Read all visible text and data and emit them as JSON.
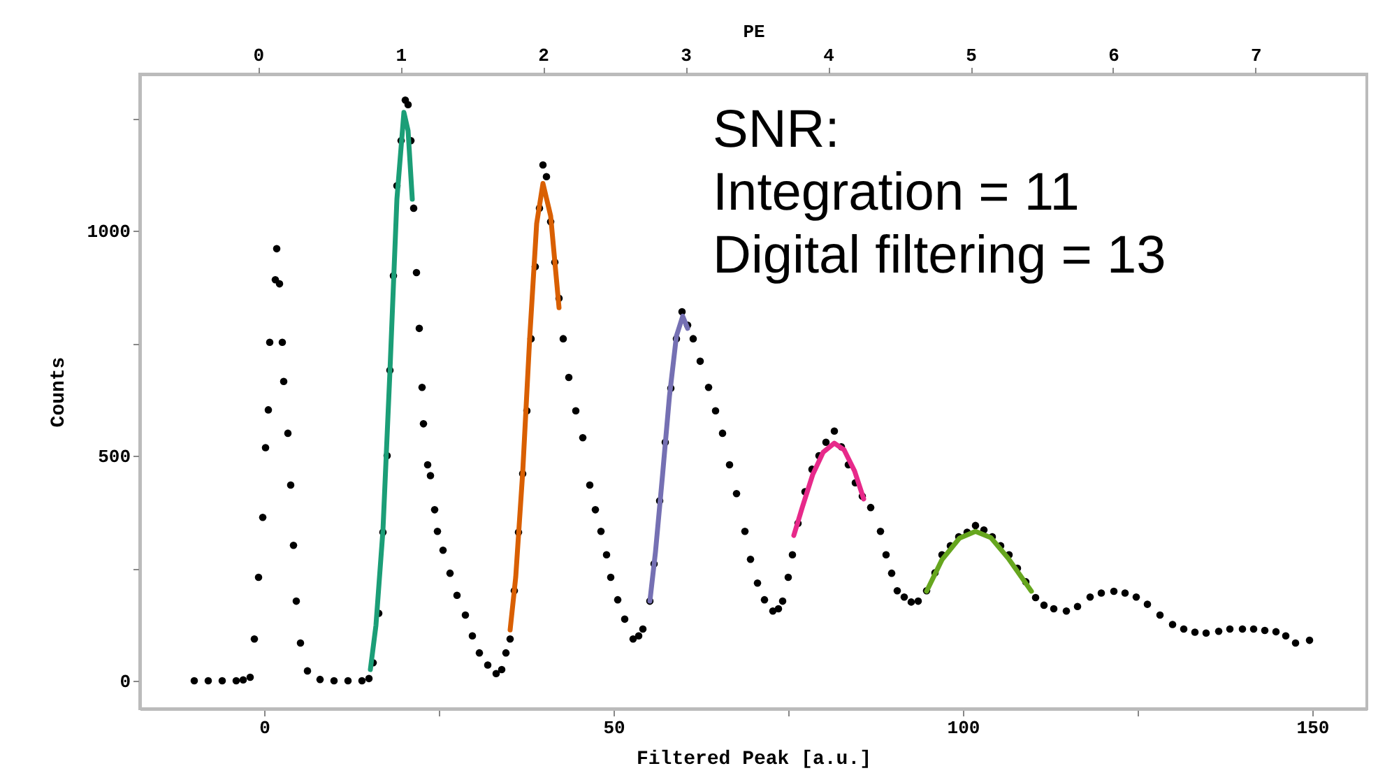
{
  "chart_data": {
    "type": "scatter",
    "xlabel": "Filtered Peak [a.u.]",
    "ylabel": "Counts",
    "x2label": "PE",
    "annotations": [
      "SNR:\nIntegration = 11\nDigital filtering = 13"
    ],
    "xlim": [
      -17.8,
      157.8
    ],
    "xticks": [
      0,
      {
        "value": 25,
        "label": null
      },
      50,
      {
        "value": 75,
        "label": null
      },
      100,
      {
        "value": 125,
        "label": null
      },
      150
    ],
    "ylim": [
      -62,
      1348
    ],
    "yticks": [
      0,
      {
        "value": 250,
        "label": null
      },
      500,
      {
        "value": 750,
        "label": null
      },
      1000,
      {
        "value": 1250,
        "label": null
      }
    ],
    "x2lim": [
      -0.83,
      7.78
    ],
    "x2ticks": [
      0,
      1,
      2,
      3,
      4,
      5,
      6,
      7
    ],
    "grid": false,
    "series": [
      {
        "marker": "circle",
        "color": "#000000",
        "x": [
          -10,
          -8,
          -6,
          -4,
          -3,
          -2,
          -1.4,
          -0.8,
          -0.2,
          0.2,
          0.6,
          0.8,
          1.6,
          1.8,
          2.2,
          2.6,
          2.8,
          3.4,
          3.8,
          4.2,
          4.6,
          5.2,
          6.2,
          8,
          10,
          12,
          14,
          15,
          15.6,
          16.4,
          17,
          17.6,
          18,
          18.5,
          19,
          19.6,
          20.2,
          20.6,
          21,
          21.4,
          21.8,
          22.2,
          22.6,
          22.8,
          23.4,
          23.8,
          24.4,
          24.8,
          25.6,
          26.6,
          27.6,
          28.8,
          29.8,
          30.8,
          32,
          33.2,
          34,
          34.6,
          35.2,
          35.8,
          36.4,
          37,
          37.6,
          38.2,
          38.8,
          39.4,
          39.9,
          40.4,
          41,
          41.6,
          42.2,
          42.8,
          43.6,
          44.6,
          45.6,
          46.6,
          47.4,
          48.2,
          49,
          49.6,
          50.6,
          51.6,
          52.8,
          53.6,
          54.2,
          55.2,
          55.8,
          56.6,
          57.4,
          58.2,
          59,
          59.8,
          60.6,
          61.4,
          62.4,
          63.6,
          64.6,
          65.6,
          66.6,
          67.6,
          68.8,
          69.6,
          70.6,
          71.6,
          72.8,
          73.6,
          74.2,
          75,
          75.6,
          76.4,
          77.4,
          78.4,
          79.4,
          80.4,
          81.6,
          82.6,
          83.6,
          84.6,
          85.6,
          86.8,
          88.2,
          89,
          89.8,
          90.6,
          91.6,
          92.6,
          93.6,
          94.8,
          96,
          97,
          98.2,
          99.4,
          100.6,
          101.8,
          103,
          104.2,
          105.4,
          106.6,
          107.8,
          109,
          110.4,
          111.6,
          113,
          114.8,
          116.4,
          118.2,
          119.8,
          121.6,
          123.2,
          124.8,
          126.4,
          128.2,
          130,
          131.6,
          133.2,
          134.8,
          136.6,
          138.2,
          140,
          141.6,
          143.2,
          144.8,
          146.2,
          147.6,
          149.6
        ],
        "values": [
          0,
          0,
          0,
          0,
          2,
          8,
          93,
          230,
          363,
          518,
          602,
          752,
          891,
          960,
          882,
          752,
          665,
          550,
          435,
          301,
          177,
          84,
          22,
          3,
          0,
          0,
          0,
          5,
          40,
          150,
          330,
          500,
          690,
          900,
          1100,
          1200,
          1290,
          1280,
          1200,
          1050,
          907,
          783,
          652,
          571,
          480,
          456,
          380,
          332,
          290,
          239,
          190,
          146,
          100,
          62,
          35,
          16,
          25,
          62,
          93,
          200,
          330,
          460,
          600,
          760,
          920,
          1050,
          1146,
          1120,
          1020,
          930,
          850,
          760,
          674,
          600,
          540,
          435,
          380,
          332,
          280,
          230,
          180,
          137,
          93,
          100,
          115,
          177,
          260,
          400,
          530,
          650,
          760,
          820,
          790,
          760,
          710,
          652,
          600,
          550,
          480,
          416,
          332,
          270,
          217,
          180,
          155,
          160,
          177,
          230,
          280,
          350,
          420,
          470,
          500,
          530,
          555,
          520,
          480,
          440,
          410,
          385,
          332,
          280,
          239,
          200,
          186,
          175,
          177,
          200,
          240,
          280,
          300,
          320,
          330,
          345,
          335,
          320,
          300,
          280,
          250,
          220,
          185,
          168,
          160,
          155,
          165,
          186,
          195,
          199,
          195,
          186,
          170,
          146,
          125,
          115,
          108,
          106,
          110,
          115,
          115,
          115,
          112,
          109,
          100,
          84,
          90
        ]
      },
      {
        "type": "line",
        "color": "#1b9e77",
        "x": [
          15.2,
          16,
          17,
          18,
          19,
          20,
          20.6,
          21.2
        ],
        "values": [
          25,
          123,
          334,
          687,
          1070,
          1263,
          1222,
          1070
        ]
      },
      {
        "type": "line",
        "color": "#d95f02",
        "x": [
          35.2,
          36,
          37,
          38,
          39,
          39.9,
          41,
          42.2
        ],
        "values": [
          113,
          230,
          463,
          761,
          1016,
          1105,
          1033,
          829
        ]
      },
      {
        "type": "line",
        "color": "#7570b3",
        "x": [
          55.2,
          56,
          57,
          58,
          59,
          59.9,
          60.6
        ],
        "values": [
          177,
          286,
          455,
          632,
          766,
          810,
          783
        ]
      },
      {
        "type": "line",
        "color": "#e7298a",
        "x": [
          75.8,
          77,
          78.5,
          80,
          81.6,
          83,
          84.5,
          85.8
        ],
        "values": [
          323,
          385,
          458,
          508,
          528,
          513,
          466,
          404
        ]
      },
      {
        "type": "line",
        "color": "#66a61e",
        "x": [
          94.8,
          97,
          99.5,
          101.8,
          104,
          106.5,
          109.8
        ],
        "values": [
          199,
          269,
          317,
          332,
          318,
          272,
          199
        ]
      }
    ]
  }
}
